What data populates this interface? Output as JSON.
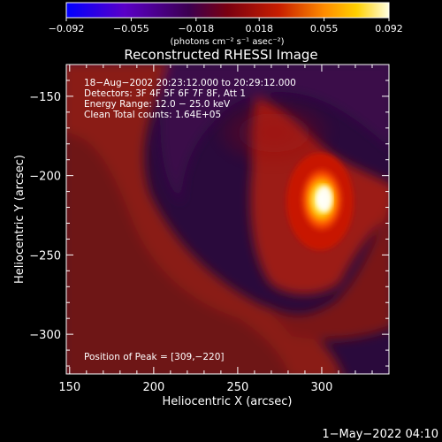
{
  "colorbar": {
    "ticks": [
      -0.092,
      -0.055,
      -0.018,
      0.018,
      0.055,
      0.092
    ],
    "tick_labels": [
      "−0.092",
      "−0.055",
      "−0.018",
      "0.018",
      "0.055",
      "0.092"
    ],
    "range": [
      -0.092,
      0.092
    ],
    "units_label": "(photons cm⁻² s⁻¹ asec⁻²)",
    "colors": [
      "#0000ff",
      "#5a00c8",
      "#3c0050",
      "#7a0010",
      "#c81e00",
      "#ff8c00",
      "#ffd000",
      "#ffffe0"
    ]
  },
  "chart_data": {
    "type": "heatmap",
    "title": "Reconstructed RHESSI Image",
    "xlabel": "Heliocentric X (arcsec)",
    "ylabel": "Heliocentric Y (arcsec)",
    "xlim": [
      148,
      340
    ],
    "ylim": [
      -325,
      -130
    ],
    "xticks": [
      150,
      200,
      250,
      300
    ],
    "xtick_labels": [
      "150",
      "200",
      "250",
      "300"
    ],
    "yticks": [
      -150,
      -200,
      -250,
      -300
    ],
    "ytick_labels": [
      "−150",
      "−200",
      "−250",
      "−300"
    ],
    "peak": {
      "x": 309,
      "y": -220,
      "value": 0.092
    },
    "annotations": [
      "18−Aug−2002 20:23:12.000 to 20:29:12.000",
      "Detectors: 3F 4F 5F 6F 7F 8F, Att 1",
      "Energy Range: 12.0 − 25.0 keV",
      "Clean     Total counts: 1.64E+05"
    ],
    "peak_label": "Position of Peak = [309,−220]"
  },
  "footer": {
    "date": "1−May−2022 04:10"
  }
}
